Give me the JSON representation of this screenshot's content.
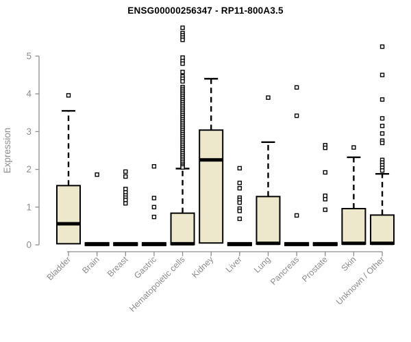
{
  "chart_data": {
    "type": "boxplot",
    "title": "ENSG00000256347 - RP11-800A3.5",
    "ylabel": "Expression",
    "xlabel": "",
    "ylim": [
      0,
      5.8
    ],
    "yticks": [
      0,
      1,
      2,
      3,
      4,
      5
    ],
    "grid": false,
    "legend": "none",
    "axis_color": "#8c8c8c",
    "box_fill_color": "#ede7cc",
    "box_line_color": "#000000",
    "categories": [
      "Bladder",
      "Brain",
      "Breast",
      "Gastric",
      "Hematopoietic cells",
      "Kidney",
      "Liver",
      "Lung",
      "Pancreas",
      "Prostate",
      "Skin",
      "Unknown / Other"
    ],
    "series": [
      {
        "label": "Bladder",
        "q1": 0.03,
        "median": 0.56,
        "q3": 1.57,
        "whisker_high": 3.55,
        "outliers": [
          3.96
        ]
      },
      {
        "label": "Brain",
        "q1": 0.0,
        "median": 0.02,
        "q3": 0.04,
        "whisker_high": null,
        "outliers": [
          1.86
        ]
      },
      {
        "label": "Breast",
        "q1": 0.0,
        "median": 0.02,
        "q3": 0.04,
        "whisker_high": null,
        "outliers": [
          1.94,
          1.81,
          1.48,
          1.39,
          1.31,
          1.25,
          1.19,
          1.1
        ]
      },
      {
        "label": "Gastric",
        "q1": 0.0,
        "median": 0.02,
        "q3": 0.04,
        "whisker_high": null,
        "outliers": [
          2.08,
          1.24,
          1.0,
          0.74
        ]
      },
      {
        "label": "Hematopoietic cells",
        "q1": 0.01,
        "median": 0.03,
        "q3": 0.84,
        "whisker_high": 2.02,
        "outliers": [
          5.75,
          5.61,
          5.55,
          5.49,
          5.43,
          4.96,
          4.87,
          4.8,
          4.58,
          4.46,
          4.4,
          4.33,
          4.18,
          4.13,
          4.08,
          4.03,
          3.98,
          3.93,
          3.88,
          3.83,
          3.78,
          3.73,
          3.68,
          3.63,
          3.58,
          3.53,
          3.48,
          3.43,
          3.38,
          3.33,
          3.28,
          3.23,
          3.18,
          3.13,
          3.08,
          3.03,
          2.98,
          2.93,
          2.88,
          2.83,
          2.78,
          2.73,
          2.68,
          2.63,
          2.58,
          2.53,
          2.48,
          2.43,
          2.38,
          2.33,
          2.28,
          2.23,
          2.18,
          2.13,
          2.09,
          2.05
        ]
      },
      {
        "label": "Kidney",
        "q1": 0.05,
        "median": 2.25,
        "q3": 3.04,
        "whisker_high": 4.4,
        "outliers": []
      },
      {
        "label": "Liver",
        "q1": 0.0,
        "median": 0.02,
        "q3": 0.04,
        "whisker_high": null,
        "outliers": [
          2.03,
          1.64,
          1.5,
          1.25,
          1.19,
          1.12,
          0.96,
          0.9,
          0.69
        ]
      },
      {
        "label": "Lung",
        "q1": 0.02,
        "median": 0.04,
        "q3": 1.28,
        "whisker_high": 2.72,
        "outliers": [
          3.9
        ]
      },
      {
        "label": "Pancreas",
        "q1": 0.0,
        "median": 0.02,
        "q3": 0.04,
        "whisker_high": null,
        "outliers": [
          4.17,
          3.42,
          0.78
        ]
      },
      {
        "label": "Prostate",
        "q1": 0.0,
        "median": 0.02,
        "q3": 0.04,
        "whisker_high": null,
        "outliers": [
          2.64,
          2.57,
          1.92,
          1.3,
          1.21,
          0.93
        ]
      },
      {
        "label": "Skin",
        "q1": 0.02,
        "median": 0.04,
        "q3": 0.96,
        "whisker_high": 2.32,
        "outliers": [
          2.58
        ]
      },
      {
        "label": "Unknown / Other",
        "q1": 0.02,
        "median": 0.04,
        "q3": 0.79,
        "whisker_high": 1.88,
        "outliers": [
          5.25,
          4.5,
          3.85,
          3.35,
          3.15,
          2.95,
          2.76,
          2.7,
          2.25,
          2.18,
          2.11,
          2.04,
          1.97
        ]
      }
    ]
  }
}
